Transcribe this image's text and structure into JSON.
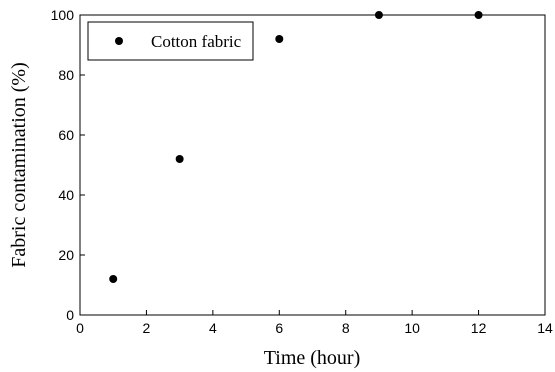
{
  "chart_data": {
    "type": "scatter",
    "title": "",
    "xlabel": "Time (hour)",
    "ylabel": "Fabric contamination (%)",
    "xlim": [
      0,
      14
    ],
    "ylim": [
      0,
      100
    ],
    "xticks": [
      0,
      2,
      4,
      6,
      8,
      10,
      12,
      14
    ],
    "yticks": [
      0,
      20,
      40,
      60,
      80,
      100
    ],
    "grid": false,
    "legend_position": "top-left",
    "series": [
      {
        "name": "Cotton fabric",
        "color": "#000000",
        "marker": "circle",
        "x": [
          1,
          3,
          6,
          9,
          12
        ],
        "y": [
          12,
          52,
          92,
          100,
          100
        ]
      }
    ]
  }
}
